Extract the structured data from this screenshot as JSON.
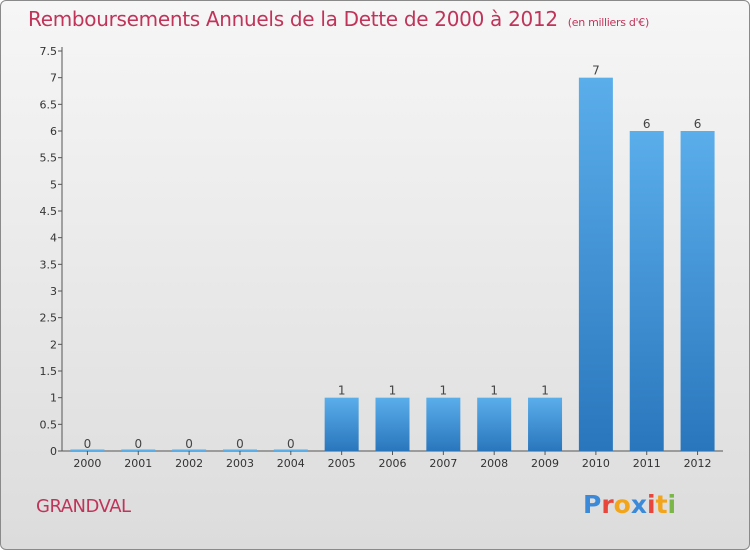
{
  "title": "Remboursements Annuels de la Dette de 2000 à 2012",
  "unit_note": "(en milliers d'€)",
  "commune": "GRANDVAL",
  "logo": {
    "text": "Proxiti",
    "letters": [
      "P",
      "r",
      "o",
      "x",
      "i",
      "t",
      "i"
    ],
    "colors": [
      "#3b8ad9",
      "#e8463c",
      "#f2a51a",
      "#3b8ad9",
      "#e8463c",
      "#f2a51a",
      "#7ab648"
    ]
  },
  "colors": {
    "bar_top": "#5aaeea",
    "bar_bottom": "#2a76bd",
    "accent": "#c0345a"
  },
  "chart_data": {
    "type": "bar",
    "categories": [
      "2000",
      "2001",
      "2002",
      "2003",
      "2004",
      "2005",
      "2006",
      "2007",
      "2008",
      "2009",
      "2010",
      "2011",
      "2012"
    ],
    "values": [
      0,
      0,
      0,
      0,
      0,
      1,
      1,
      1,
      1,
      1,
      7,
      6,
      6
    ],
    "data_labels": [
      "0",
      "0",
      "0",
      "0",
      "0",
      "1",
      "1",
      "1",
      "1",
      "1",
      "7",
      "6",
      "6"
    ],
    "y_ticks": [
      "0",
      "0.5",
      "1",
      "1.5",
      "2",
      "2.5",
      "3",
      "3.5",
      "4",
      "4.5",
      "5",
      "5.5",
      "6",
      "6.5",
      "7",
      "7.5"
    ],
    "ylim": [
      0,
      7.5
    ],
    "grid": false
  }
}
